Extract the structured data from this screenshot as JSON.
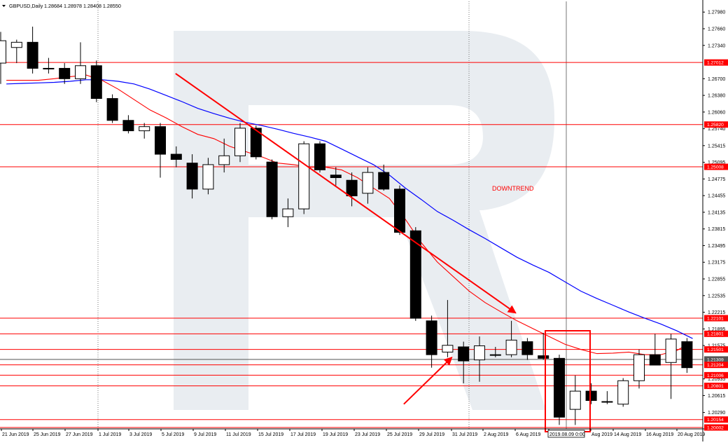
{
  "header": {
    "symbol_label": "GBPUSD,Daily",
    "ohlc": "1.28684 1.28978 1.28408 1.28550",
    "menu_icon": "triangle-down-icon"
  },
  "chart_data": {
    "type": "candlestick",
    "y_range": [
      1.19975,
      1.28185
    ],
    "x_tick_labels": [
      "21 Jun 2019",
      "25 Jun 2019",
      "27 Jun 2019",
      "1 Jul 2019",
      "3 Jul 2019",
      "5 Jul 2019",
      "9 Jul 2019",
      "11 Jul 2019",
      "15 Jul 2019",
      "17 Jul 2019",
      "19 Jul 2019",
      "23 Jul 2019",
      "25 Jul 2019",
      "29 Jul 2019",
      "31 Jul 2019",
      "2 Aug 2019",
      "6 Aug 2019",
      "2019.08.09 0:00",
      "Aug 2019",
      "14 Aug 2019",
      "16 Aug 2019",
      "20 Aug 2019"
    ],
    "y_tick_labels": [
      "1.27980",
      "1.27660",
      "1.27340",
      "1.26700",
      "1.26380",
      "1.26060",
      "1.25740",
      "1.25415",
      "1.25095",
      "1.24775",
      "1.24455",
      "1.24135",
      "1.23815",
      "1.23495",
      "1.23175",
      "1.22855",
      "1.22535",
      "1.22215",
      "1.21895",
      "1.21575",
      "1.20935",
      "1.20615",
      "1.20290"
    ],
    "level_labels": [
      "1.27012",
      "1.25820",
      "1.25008",
      "1.22101",
      "1.21801",
      "1.21501",
      "1.21309",
      "1.21204",
      "1.21006",
      "1.20801",
      "1.20154",
      "1.20002"
    ],
    "candles": [
      {
        "o": 1.27,
        "h": 1.276,
        "l": 1.266,
        "c": 1.2743
      },
      {
        "o": 1.273,
        "h": 1.2745,
        "l": 1.27,
        "c": 1.274
      },
      {
        "o": 1.274,
        "h": 1.277,
        "l": 1.268,
        "c": 1.269
      },
      {
        "o": 1.269,
        "h": 1.271,
        "l": 1.268,
        "c": 1.269
      },
      {
        "o": 1.269,
        "h": 1.27,
        "l": 1.266,
        "c": 1.267
      },
      {
        "o": 1.267,
        "h": 1.274,
        "l": 1.266,
        "c": 1.2695
      },
      {
        "o": 1.2695,
        "h": 1.2705,
        "l": 1.2625,
        "c": 1.2632
      },
      {
        "o": 1.2632,
        "h": 1.264,
        "l": 1.2585,
        "c": 1.259
      },
      {
        "o": 1.259,
        "h": 1.26,
        "l": 1.2565,
        "c": 1.257
      },
      {
        "o": 1.257,
        "h": 1.2585,
        "l": 1.2555,
        "c": 1.2578
      },
      {
        "o": 1.2578,
        "h": 1.2585,
        "l": 1.248,
        "c": 1.2525
      },
      {
        "o": 1.2525,
        "h": 1.254,
        "l": 1.25,
        "c": 1.2515
      },
      {
        "o": 1.2508,
        "h": 1.2525,
        "l": 1.244,
        "c": 1.2458
      },
      {
        "o": 1.2458,
        "h": 1.2518,
        "l": 1.2448,
        "c": 1.2505
      },
      {
        "o": 1.2505,
        "h": 1.2555,
        "l": 1.249,
        "c": 1.2522
      },
      {
        "o": 1.2522,
        "h": 1.2585,
        "l": 1.251,
        "c": 1.2575
      },
      {
        "o": 1.2575,
        "h": 1.258,
        "l": 1.2515,
        "c": 1.252
      },
      {
        "o": 1.251,
        "h": 1.2515,
        "l": 1.24,
        "c": 1.2405
      },
      {
        "o": 1.2405,
        "h": 1.244,
        "l": 1.2385,
        "c": 1.242
      },
      {
        "o": 1.242,
        "h": 1.255,
        "l": 1.241,
        "c": 1.2545
      },
      {
        "o": 1.2545,
        "h": 1.255,
        "l": 1.249,
        "c": 1.2495
      },
      {
        "o": 1.2485,
        "h": 1.25,
        "l": 1.2465,
        "c": 1.248
      },
      {
        "o": 1.2475,
        "h": 1.249,
        "l": 1.2425,
        "c": 1.2445
      },
      {
        "o": 1.245,
        "h": 1.25,
        "l": 1.243,
        "c": 1.249
      },
      {
        "o": 1.249,
        "h": 1.2505,
        "l": 1.2455,
        "c": 1.2458
      },
      {
        "o": 1.2458,
        "h": 1.2465,
        "l": 1.237,
        "c": 1.2375
      },
      {
        "o": 1.2378,
        "h": 1.2385,
        "l": 1.2205,
        "c": 1.221
      },
      {
        "o": 1.2205,
        "h": 1.2215,
        "l": 1.2115,
        "c": 1.214
      },
      {
        "o": 1.2145,
        "h": 1.2245,
        "l": 1.2135,
        "c": 1.2158
      },
      {
        "o": 1.2155,
        "h": 1.2165,
        "l": 1.2085,
        "c": 1.2128
      },
      {
        "o": 1.213,
        "h": 1.2175,
        "l": 1.2088,
        "c": 1.2157
      },
      {
        "o": 1.214,
        "h": 1.2155,
        "l": 1.2135,
        "c": 1.214
      },
      {
        "o": 1.214,
        "h": 1.2205,
        "l": 1.2135,
        "c": 1.2168
      },
      {
        "o": 1.2165,
        "h": 1.2172,
        "l": 1.213,
        "c": 1.214
      },
      {
        "o": 1.2138,
        "h": 1.2182,
        "l": 1.213,
        "c": 1.2133
      },
      {
        "o": 1.2133,
        "h": 1.214,
        "l": 1.2005,
        "c": 1.202
      },
      {
        "o": 1.2035,
        "h": 1.21,
        "l": 1.2005,
        "c": 1.207
      },
      {
        "o": 1.207,
        "h": 1.2085,
        "l": 1.2045,
        "c": 1.2052
      },
      {
        "o": 1.205,
        "h": 1.207,
        "l": 1.2045,
        "c": 1.205
      },
      {
        "o": 1.2045,
        "h": 1.2095,
        "l": 1.204,
        "c": 1.209
      },
      {
        "o": 1.209,
        "h": 1.215,
        "l": 1.2075,
        "c": 1.214
      },
      {
        "o": 1.214,
        "h": 1.218,
        "l": 1.212,
        "c": 1.212
      },
      {
        "o": 1.2125,
        "h": 1.218,
        "l": 1.2055,
        "c": 1.217
      },
      {
        "o": 1.2165,
        "h": 1.2172,
        "l": 1.2105,
        "c": 1.2115
      }
    ],
    "ma_fast": [
      1.2667,
      1.2667,
      1.2667,
      1.267,
      1.2674,
      1.2677,
      1.2667,
      1.265,
      1.263,
      1.261,
      1.2595,
      1.2578,
      1.2563,
      1.2555,
      1.254,
      1.253,
      1.252,
      1.2508,
      1.2505,
      1.25,
      1.25,
      1.2495,
      1.248,
      1.246,
      1.244,
      1.24,
      1.2355,
      1.2318,
      1.229,
      1.2262,
      1.224,
      1.2222,
      1.2205,
      1.219,
      1.2175,
      1.216,
      1.215,
      1.2142,
      1.2143,
      1.2145,
      1.214,
      1.214,
      1.2148,
      1.2165
    ],
    "ma_slow": [
      1.266,
      1.2661,
      1.2662,
      1.2663,
      1.2665,
      1.2668,
      1.2668,
      1.2665,
      1.266,
      1.265,
      1.2638,
      1.2626,
      1.2613,
      1.2603,
      1.2594,
      1.2586,
      1.258,
      1.2573,
      1.2565,
      1.2558,
      1.255,
      1.2535,
      1.252,
      1.2505,
      1.2485,
      1.246,
      1.2438,
      1.2415,
      1.2398,
      1.238,
      1.2363,
      1.2345,
      1.2327,
      1.2312,
      1.2298,
      1.228,
      1.2262,
      1.2248,
      1.2235,
      1.2222,
      1.221,
      1.2199,
      1.2186,
      1.2171
    ],
    "annotations": [
      {
        "type": "text",
        "text": "DOWNTREND",
        "color": "#ff0000"
      },
      {
        "type": "trend-arrow",
        "from": [
          11,
          1.268
        ],
        "to": [
          31,
          1.222
        ]
      },
      {
        "type": "trend-arrow",
        "from": [
          25.3,
          1.2045
        ],
        "to": [
          27,
          1.2135
        ]
      }
    ],
    "colors": {
      "levels": "#ff0000",
      "ma_fast": "#ff0000",
      "ma_slow": "#0000ff",
      "candle_bear": "#000000",
      "candle_bull": "#ffffff",
      "price_line": "#555555"
    }
  }
}
